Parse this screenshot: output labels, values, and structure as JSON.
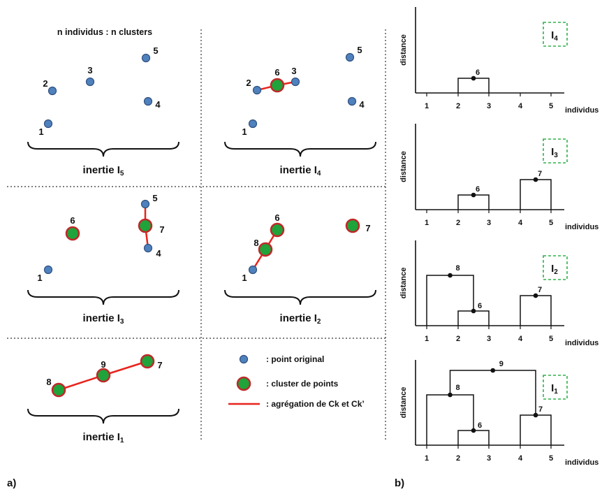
{
  "colors": {
    "point_fill": "#4f81bd",
    "point_stroke": "#2f4f7f",
    "cluster_fill": "#1fa33a",
    "cluster_stroke": "#c0282a",
    "link": "#e8241c",
    "box_border": "#2fb24a",
    "text": "#111111"
  },
  "left_panel": {
    "header": "n individus : n clusters",
    "panel_label": "a)",
    "panels": [
      {
        "id": "I5",
        "inertia_text": "inertie I",
        "inertia_sub": "5",
        "points": [
          {
            "label": "1",
            "kind": "point"
          },
          {
            "label": "2",
            "kind": "point"
          },
          {
            "label": "3",
            "kind": "point"
          },
          {
            "label": "4",
            "kind": "point"
          },
          {
            "label": "5",
            "kind": "point"
          }
        ]
      },
      {
        "id": "I4",
        "inertia_text": "inertie I",
        "inertia_sub": "4",
        "points": [
          {
            "label": "1",
            "kind": "point"
          },
          {
            "label": "2",
            "kind": "point"
          },
          {
            "label": "6",
            "kind": "cluster"
          },
          {
            "label": "3",
            "kind": "point"
          },
          {
            "label": "4",
            "kind": "point"
          },
          {
            "label": "5",
            "kind": "point"
          }
        ]
      },
      {
        "id": "I3",
        "inertia_text": "inertie I",
        "inertia_sub": "3",
        "points": [
          {
            "label": "1",
            "kind": "point"
          },
          {
            "label": "6",
            "kind": "cluster"
          },
          {
            "label": "5",
            "kind": "point"
          },
          {
            "label": "7",
            "kind": "cluster"
          },
          {
            "label": "4",
            "kind": "point"
          }
        ]
      },
      {
        "id": "I2",
        "inertia_text": "inertie I",
        "inertia_sub": "2",
        "points": [
          {
            "label": "1",
            "kind": "point"
          },
          {
            "label": "8",
            "kind": "cluster"
          },
          {
            "label": "6",
            "kind": "cluster"
          },
          {
            "label": "7",
            "kind": "cluster"
          }
        ]
      },
      {
        "id": "I1",
        "inertia_text": "inertie I",
        "inertia_sub": "1",
        "points": [
          {
            "label": "8",
            "kind": "cluster"
          },
          {
            "label": "9",
            "kind": "cluster"
          },
          {
            "label": "7",
            "kind": "cluster"
          }
        ]
      }
    ],
    "legend": [
      {
        "kind": "point",
        "text": ": point original"
      },
      {
        "kind": "cluster",
        "text": ": cluster de points"
      },
      {
        "kind": "link",
        "text": ": agrégation de Ck et Ck’"
      }
    ]
  },
  "right_panel": {
    "panel_label": "b)",
    "y_axis_label": "distance",
    "x_axis_label": "individus",
    "x_ticks": [
      "1",
      "2",
      "3",
      "4",
      "5"
    ],
    "dendrograms": [
      {
        "box_text": "I",
        "box_sub": "4",
        "node_labels": [
          "6"
        ]
      },
      {
        "box_text": "I",
        "box_sub": "3",
        "node_labels": [
          "6",
          "7"
        ]
      },
      {
        "box_text": "I",
        "box_sub": "2",
        "node_labels": [
          "8",
          "6",
          "7"
        ]
      },
      {
        "box_text": "I",
        "box_sub": "1",
        "node_labels": [
          "9",
          "8",
          "6",
          "7"
        ]
      }
    ]
  }
}
